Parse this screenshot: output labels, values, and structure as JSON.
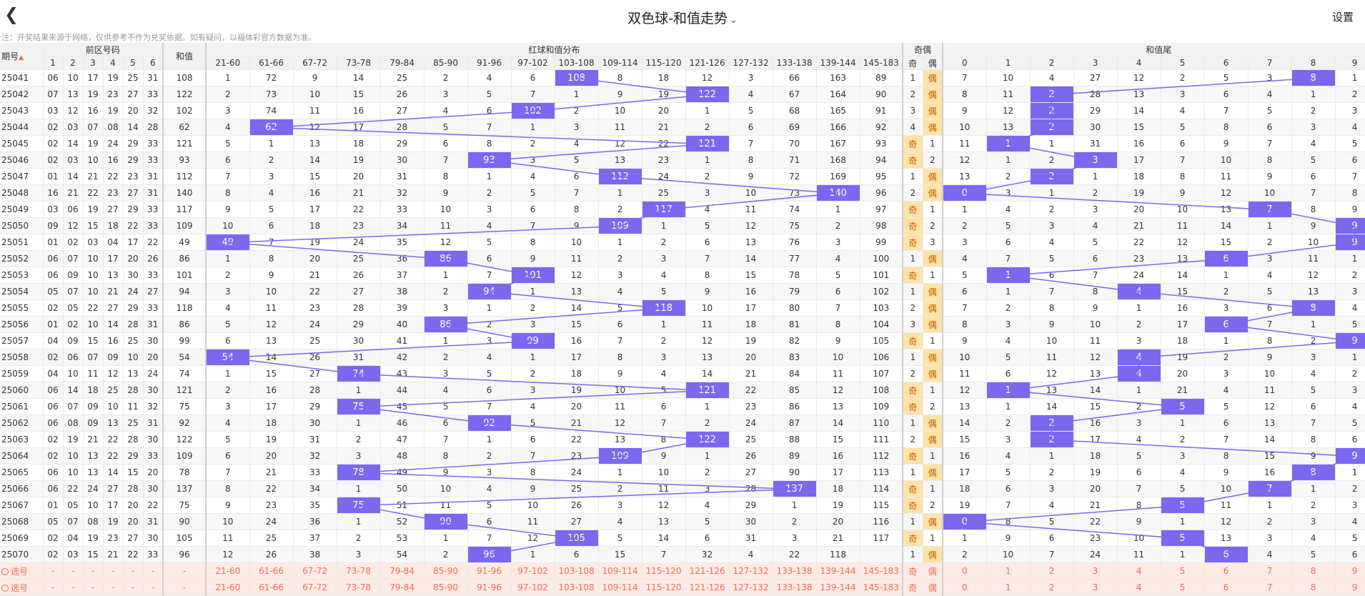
{
  "header": {
    "title": "双色球-和值走势",
    "settings": "设置"
  },
  "notice": "注：开奖结果来源于网络，仅供参考不作为兑奖依据。如有疑问，以福体彩官方数据为准。",
  "headers": {
    "period": "期号",
    "sort_mark": "▲",
    "front": "前区号码",
    "sum": "和值",
    "red_sum": "红球和值分布",
    "parity": "奇偶",
    "tail": "和值尾",
    "front_cols": [
      "1",
      "2",
      "3",
      "4",
      "5",
      "6"
    ],
    "odd": "奇",
    "even": "偶"
  },
  "ranges": [
    "21-60",
    "61-66",
    "67-72",
    "73-78",
    "79-84",
    "85-90",
    "91-96",
    "97-102",
    "103-108",
    "109-114",
    "115-120",
    "121-126",
    "127-132",
    "133-138",
    "139-144",
    "145-183"
  ],
  "tails": [
    "0",
    "1",
    "2",
    "3",
    "4",
    "5",
    "6",
    "7",
    "8",
    "9"
  ],
  "select_label": "选号",
  "dash": "-",
  "accent": "#7b68ee",
  "rows": [
    {
      "p": "25041",
      "n": [
        "06",
        "10",
        "17",
        "19",
        "25",
        "31"
      ],
      "s": "108",
      "r": [
        "1",
        "72",
        "9",
        "14",
        "25",
        "2",
        "4",
        "6",
        "108",
        "8",
        "18",
        "12",
        "3",
        "66",
        "163",
        "89"
      ],
      "o": "1",
      "e": "偶",
      "t": [
        "7",
        "10",
        "4",
        "27",
        "12",
        "2",
        "5",
        "3",
        "8",
        "1"
      ]
    },
    {
      "p": "25042",
      "n": [
        "07",
        "13",
        "19",
        "23",
        "27",
        "33"
      ],
      "s": "122",
      "r": [
        "2",
        "73",
        "10",
        "15",
        "26",
        "3",
        "5",
        "7",
        "1",
        "9",
        "19",
        "122",
        "4",
        "67",
        "164",
        "90"
      ],
      "o": "2",
      "e": "偶",
      "t": [
        "8",
        "11",
        "2",
        "28",
        "13",
        "3",
        "6",
        "4",
        "1",
        "2"
      ]
    },
    {
      "p": "25043",
      "n": [
        "03",
        "12",
        "16",
        "19",
        "20",
        "32"
      ],
      "s": "102",
      "r": [
        "3",
        "74",
        "11",
        "16",
        "27",
        "4",
        "6",
        "102",
        "2",
        "10",
        "20",
        "1",
        "5",
        "68",
        "165",
        "91"
      ],
      "o": "3",
      "e": "偶",
      "t": [
        "9",
        "12",
        "2",
        "29",
        "14",
        "4",
        "7",
        "5",
        "2",
        "3"
      ]
    },
    {
      "p": "25044",
      "n": [
        "02",
        "03",
        "07",
        "08",
        "14",
        "28"
      ],
      "s": "62",
      "r": [
        "4",
        "62",
        "12",
        "17",
        "28",
        "5",
        "7",
        "1",
        "3",
        "11",
        "21",
        "2",
        "6",
        "69",
        "166",
        "92"
      ],
      "o": "4",
      "e": "偶",
      "t": [
        "10",
        "13",
        "2",
        "30",
        "15",
        "5",
        "8",
        "6",
        "3",
        "4"
      ]
    },
    {
      "p": "25045",
      "n": [
        "02",
        "14",
        "19",
        "24",
        "29",
        "33"
      ],
      "s": "121",
      "r": [
        "5",
        "1",
        "13",
        "18",
        "29",
        "6",
        "8",
        "2",
        "4",
        "12",
        "22",
        "121",
        "7",
        "70",
        "167",
        "93"
      ],
      "o": "奇",
      "e": "1",
      "t": [
        "11",
        "1",
        "1",
        "31",
        "16",
        "6",
        "9",
        "7",
        "4",
        "5"
      ]
    },
    {
      "p": "25046",
      "n": [
        "02",
        "03",
        "10",
        "16",
        "29",
        "33"
      ],
      "s": "93",
      "r": [
        "6",
        "2",
        "14",
        "19",
        "30",
        "7",
        "93",
        "3",
        "5",
        "13",
        "23",
        "1",
        "8",
        "71",
        "168",
        "94"
      ],
      "o": "奇",
      "e": "2",
      "t": [
        "12",
        "1",
        "2",
        "3",
        "17",
        "7",
        "10",
        "8",
        "5",
        "6"
      ]
    },
    {
      "p": "25047",
      "n": [
        "01",
        "14",
        "21",
        "22",
        "23",
        "31"
      ],
      "s": "112",
      "r": [
        "7",
        "3",
        "15",
        "20",
        "31",
        "8",
        "1",
        "4",
        "6",
        "112",
        "24",
        "2",
        "9",
        "72",
        "169",
        "95"
      ],
      "o": "1",
      "e": "偶",
      "t": [
        "13",
        "2",
        "2",
        "1",
        "18",
        "8",
        "11",
        "9",
        "6",
        "7"
      ]
    },
    {
      "p": "25048",
      "n": [
        "16",
        "21",
        "22",
        "23",
        "27",
        "31"
      ],
      "s": "140",
      "r": [
        "8",
        "4",
        "16",
        "21",
        "32",
        "9",
        "2",
        "5",
        "7",
        "1",
        "25",
        "3",
        "10",
        "73",
        "140",
        "96"
      ],
      "o": "2",
      "e": "偶",
      "t": [
        "0",
        "3",
        "1",
        "2",
        "19",
        "9",
        "12",
        "10",
        "7",
        "8"
      ]
    },
    {
      "p": "25049",
      "n": [
        "03",
        "06",
        "19",
        "27",
        "29",
        "33"
      ],
      "s": "117",
      "r": [
        "9",
        "5",
        "17",
        "22",
        "33",
        "10",
        "3",
        "6",
        "8",
        "2",
        "117",
        "4",
        "11",
        "74",
        "1",
        "97"
      ],
      "o": "奇",
      "e": "1",
      "t": [
        "1",
        "4",
        "2",
        "3",
        "20",
        "10",
        "13",
        "7",
        "8",
        "9"
      ]
    },
    {
      "p": "25050",
      "n": [
        "09",
        "12",
        "15",
        "18",
        "22",
        "33"
      ],
      "s": "109",
      "r": [
        "10",
        "6",
        "18",
        "23",
        "34",
        "11",
        "4",
        "7",
        "9",
        "109",
        "1",
        "5",
        "12",
        "75",
        "2",
        "98"
      ],
      "o": "奇",
      "e": "2",
      "t": [
        "2",
        "5",
        "3",
        "4",
        "21",
        "11",
        "14",
        "1",
        "9",
        "9"
      ]
    },
    {
      "p": "25051",
      "n": [
        "01",
        "02",
        "03",
        "04",
        "17",
        "22"
      ],
      "s": "49",
      "r": [
        "49",
        "7",
        "19",
        "24",
        "35",
        "12",
        "5",
        "8",
        "10",
        "1",
        "2",
        "6",
        "13",
        "76",
        "3",
        "99"
      ],
      "o": "奇",
      "e": "3",
      "t": [
        "3",
        "6",
        "4",
        "5",
        "22",
        "12",
        "15",
        "2",
        "10",
        "9"
      ]
    },
    {
      "p": "25052",
      "n": [
        "06",
        "07",
        "10",
        "17",
        "20",
        "26"
      ],
      "s": "86",
      "r": [
        "1",
        "8",
        "20",
        "25",
        "36",
        "86",
        "6",
        "9",
        "11",
        "2",
        "3",
        "7",
        "14",
        "77",
        "4",
        "100"
      ],
      "o": "1",
      "e": "偶",
      "t": [
        "4",
        "7",
        "5",
        "6",
        "23",
        "13",
        "6",
        "3",
        "11",
        "1"
      ]
    },
    {
      "p": "25053",
      "n": [
        "06",
        "09",
        "10",
        "13",
        "30",
        "33"
      ],
      "s": "101",
      "r": [
        "2",
        "9",
        "21",
        "26",
        "37",
        "1",
        "7",
        "101",
        "12",
        "3",
        "4",
        "8",
        "15",
        "78",
        "5",
        "101"
      ],
      "o": "奇",
      "e": "1",
      "t": [
        "5",
        "1",
        "6",
        "7",
        "24",
        "14",
        "1",
        "4",
        "12",
        "2"
      ]
    },
    {
      "p": "25054",
      "n": [
        "05",
        "07",
        "10",
        "21",
        "24",
        "27"
      ],
      "s": "94",
      "r": [
        "3",
        "10",
        "22",
        "27",
        "38",
        "2",
        "94",
        "1",
        "13",
        "4",
        "5",
        "9",
        "16",
        "79",
        "6",
        "102"
      ],
      "o": "1",
      "e": "偶",
      "t": [
        "6",
        "1",
        "7",
        "8",
        "4",
        "15",
        "2",
        "5",
        "13",
        "3"
      ]
    },
    {
      "p": "25055",
      "n": [
        "02",
        "05",
        "22",
        "27",
        "29",
        "33"
      ],
      "s": "118",
      "r": [
        "4",
        "11",
        "23",
        "28",
        "39",
        "3",
        "1",
        "2",
        "14",
        "5",
        "118",
        "10",
        "17",
        "80",
        "7",
        "103"
      ],
      "o": "2",
      "e": "偶",
      "t": [
        "7",
        "2",
        "8",
        "9",
        "1",
        "16",
        "3",
        "6",
        "8",
        "4"
      ]
    },
    {
      "p": "25056",
      "n": [
        "01",
        "02",
        "10",
        "14",
        "28",
        "31"
      ],
      "s": "86",
      "r": [
        "5",
        "12",
        "24",
        "29",
        "40",
        "86",
        "2",
        "3",
        "15",
        "6",
        "1",
        "11",
        "18",
        "81",
        "8",
        "104"
      ],
      "o": "3",
      "e": "偶",
      "t": [
        "8",
        "3",
        "9",
        "10",
        "2",
        "17",
        "6",
        "7",
        "1",
        "5"
      ]
    },
    {
      "p": "25057",
      "n": [
        "04",
        "09",
        "15",
        "16",
        "25",
        "30"
      ],
      "s": "99",
      "r": [
        "6",
        "13",
        "25",
        "30",
        "41",
        "1",
        "3",
        "99",
        "16",
        "7",
        "2",
        "12",
        "19",
        "82",
        "9",
        "105"
      ],
      "o": "奇",
      "e": "1",
      "t": [
        "9",
        "4",
        "10",
        "11",
        "3",
        "18",
        "1",
        "8",
        "2",
        "9"
      ]
    },
    {
      "p": "25058",
      "n": [
        "02",
        "06",
        "07",
        "09",
        "10",
        "20"
      ],
      "s": "54",
      "r": [
        "54",
        "14",
        "26",
        "31",
        "42",
        "2",
        "4",
        "1",
        "17",
        "8",
        "3",
        "13",
        "20",
        "83",
        "10",
        "106"
      ],
      "o": "1",
      "e": "偶",
      "t": [
        "10",
        "5",
        "11",
        "12",
        "4",
        "19",
        "2",
        "9",
        "3",
        "1"
      ]
    },
    {
      "p": "25059",
      "n": [
        "04",
        "10",
        "11",
        "12",
        "13",
        "24"
      ],
      "s": "74",
      "r": [
        "1",
        "15",
        "27",
        "74",
        "43",
        "3",
        "5",
        "2",
        "18",
        "9",
        "4",
        "14",
        "21",
        "84",
        "11",
        "107"
      ],
      "o": "2",
      "e": "偶",
      "t": [
        "11",
        "6",
        "12",
        "13",
        "4",
        "20",
        "3",
        "10",
        "4",
        "2"
      ]
    },
    {
      "p": "25060",
      "n": [
        "06",
        "14",
        "18",
        "25",
        "28",
        "30"
      ],
      "s": "121",
      "r": [
        "2",
        "16",
        "28",
        "1",
        "44",
        "4",
        "6",
        "3",
        "19",
        "10",
        "5",
        "121",
        "22",
        "85",
        "12",
        "108"
      ],
      "o": "奇",
      "e": "1",
      "t": [
        "12",
        "1",
        "13",
        "14",
        "1",
        "21",
        "4",
        "11",
        "5",
        "3"
      ]
    },
    {
      "p": "25061",
      "n": [
        "06",
        "07",
        "09",
        "10",
        "11",
        "32"
      ],
      "s": "75",
      "r": [
        "3",
        "17",
        "29",
        "75",
        "45",
        "5",
        "7",
        "4",
        "20",
        "11",
        "6",
        "1",
        "23",
        "86",
        "13",
        "109"
      ],
      "o": "奇",
      "e": "2",
      "t": [
        "13",
        "1",
        "14",
        "15",
        "2",
        "5",
        "5",
        "12",
        "6",
        "4"
      ]
    },
    {
      "p": "25062",
      "n": [
        "06",
        "08",
        "09",
        "13",
        "25",
        "31"
      ],
      "s": "92",
      "r": [
        "4",
        "18",
        "30",
        "1",
        "46",
        "6",
        "92",
        "5",
        "21",
        "12",
        "7",
        "2",
        "24",
        "87",
        "14",
        "110"
      ],
      "o": "1",
      "e": "偶",
      "t": [
        "14",
        "2",
        "2",
        "16",
        "3",
        "1",
        "6",
        "13",
        "7",
        "5"
      ]
    },
    {
      "p": "25063",
      "n": [
        "02",
        "19",
        "21",
        "22",
        "28",
        "30"
      ],
      "s": "122",
      "r": [
        "5",
        "19",
        "31",
        "2",
        "47",
        "7",
        "1",
        "6",
        "22",
        "13",
        "8",
        "122",
        "25",
        "88",
        "15",
        "111"
      ],
      "o": "2",
      "e": "偶",
      "t": [
        "15",
        "3",
        "2",
        "17",
        "4",
        "2",
        "7",
        "14",
        "8",
        "6"
      ]
    },
    {
      "p": "25064",
      "n": [
        "02",
        "10",
        "13",
        "22",
        "29",
        "33"
      ],
      "s": "109",
      "r": [
        "6",
        "20",
        "32",
        "3",
        "48",
        "8",
        "2",
        "7",
        "23",
        "109",
        "9",
        "1",
        "26",
        "89",
        "16",
        "112"
      ],
      "o": "奇",
      "e": "1",
      "t": [
        "16",
        "4",
        "1",
        "18",
        "5",
        "3",
        "8",
        "15",
        "9",
        "9"
      ]
    },
    {
      "p": "25065",
      "n": [
        "06",
        "10",
        "13",
        "14",
        "15",
        "20"
      ],
      "s": "78",
      "r": [
        "7",
        "21",
        "33",
        "78",
        "49",
        "9",
        "3",
        "8",
        "24",
        "1",
        "10",
        "2",
        "27",
        "90",
        "17",
        "113"
      ],
      "o": "1",
      "e": "偶",
      "t": [
        "17",
        "5",
        "2",
        "19",
        "6",
        "4",
        "9",
        "16",
        "8",
        "1"
      ]
    },
    {
      "p": "25066",
      "n": [
        "06",
        "22",
        "24",
        "27",
        "28",
        "30"
      ],
      "s": "137",
      "r": [
        "8",
        "22",
        "34",
        "1",
        "50",
        "10",
        "4",
        "9",
        "25",
        "2",
        "11",
        "3",
        "28",
        "137",
        "18",
        "114"
      ],
      "o": "奇",
      "e": "1",
      "t": [
        "18",
        "6",
        "3",
        "20",
        "7",
        "5",
        "10",
        "7",
        "1",
        "2"
      ]
    },
    {
      "p": "25067",
      "n": [
        "01",
        "05",
        "10",
        "17",
        "20",
        "22"
      ],
      "s": "75",
      "r": [
        "9",
        "23",
        "35",
        "75",
        "51",
        "11",
        "5",
        "10",
        "26",
        "3",
        "12",
        "4",
        "29",
        "1",
        "19",
        "115"
      ],
      "o": "奇",
      "e": "2",
      "t": [
        "19",
        "7",
        "4",
        "21",
        "8",
        "5",
        "11",
        "1",
        "2",
        "3"
      ]
    },
    {
      "p": "25068",
      "n": [
        "05",
        "07",
        "08",
        "19",
        "20",
        "31"
      ],
      "s": "90",
      "r": [
        "10",
        "24",
        "36",
        "1",
        "52",
        "90",
        "6",
        "11",
        "27",
        "4",
        "13",
        "5",
        "30",
        "2",
        "20",
        "116"
      ],
      "o": "1",
      "e": "偶",
      "t": [
        "0",
        "8",
        "5",
        "22",
        "9",
        "1",
        "12",
        "2",
        "3",
        "4"
      ]
    },
    {
      "p": "25069",
      "n": [
        "02",
        "04",
        "19",
        "23",
        "27",
        "30"
      ],
      "s": "105",
      "r": [
        "11",
        "25",
        "37",
        "2",
        "53",
        "1",
        "7",
        "12",
        "105",
        "5",
        "14",
        "6",
        "31",
        "3",
        "21",
        "117"
      ],
      "o": "奇",
      "e": "1",
      "t": [
        "1",
        "9",
        "6",
        "23",
        "10",
        "5",
        "13",
        "3",
        "4",
        "5"
      ]
    },
    {
      "p": "25070",
      "n": [
        "02",
        "03",
        "15",
        "21",
        "22",
        "33"
      ],
      "s": "96",
      "r": [
        "12",
        "26",
        "38",
        "3",
        "54",
        "2",
        "96",
        "1",
        "6",
        "15",
        "7",
        "32",
        "4",
        "22",
        "118",
        ""
      ],
      "o": "1",
      "e": "偶",
      "t": [
        "2",
        "10",
        "7",
        "24",
        "11",
        "1",
        "6",
        "4",
        "5",
        "6"
      ]
    }
  ],
  "sel_rows": [
    {
      "parity": [
        "奇",
        "偶"
      ],
      "tails": [
        "0",
        "1",
        "2",
        "3",
        "4",
        "5",
        "6",
        "7",
        "8",
        "9"
      ]
    },
    {
      "parity": [
        "奇",
        "偶"
      ],
      "tails": [
        "0",
        "1",
        "2",
        "3",
        "4",
        "5",
        "6",
        "7",
        "8",
        "9"
      ]
    }
  ]
}
